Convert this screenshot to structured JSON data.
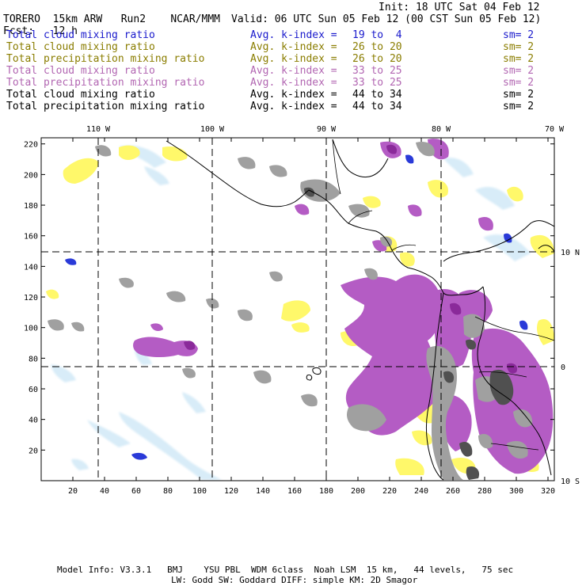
{
  "header": {
    "model": "TORERO",
    "resolution": "15km ARW",
    "run": "Run2",
    "org": "NCAR/MMM",
    "init": "Init: 18 UTC Sat 04 Feb 12",
    "fcst_label": "Fcst:",
    "fcst_value": "12 h",
    "valid": "Valid: 06 UTC Sun 05 Feb 12 (00 CST Sun 05 Feb 12)"
  },
  "legend": [
    {
      "field": "Total cloud mixing ratio",
      "kindex": "Avg. k-index =",
      "range": "19 to  4",
      "sm": "sm= 2",
      "color": "#1a1acc"
    },
    {
      "field": "Total cloud mixing ratio",
      "kindex": "Avg. k-index =",
      "range": "26 to 20",
      "sm": "sm= 2",
      "color": "#8a7d00"
    },
    {
      "field": "Total precipitation mixing ratio",
      "kindex": "Avg. k-index =",
      "range": "26 to 20",
      "sm": "sm= 2",
      "color": "#8a7d00"
    },
    {
      "field": "Total cloud mixing ratio",
      "kindex": "Avg. k-index =",
      "range": "33 to 25",
      "sm": "sm= 2",
      "color": "#b266b2"
    },
    {
      "field": "Total precipitation mixing ratio",
      "kindex": "Avg. k-index =",
      "range": "33 to 25",
      "sm": "sm= 2",
      "color": "#b266b2"
    },
    {
      "field": "Total cloud mixing ratio",
      "kindex": "Avg. k-index =",
      "range": "44 to 34",
      "sm": "sm= 2",
      "color": "#000000"
    },
    {
      "field": "Total precipitation mixing ratio",
      "kindex": "Avg. k-index =",
      "range": "44 to 34",
      "sm": "sm= 2",
      "color": "#000000"
    }
  ],
  "map": {
    "top_lon_labels": [
      "110 W",
      "100 W",
      "90 W",
      "80 W",
      "70 W"
    ],
    "right_lat_labels": [
      "10 N",
      "0",
      "10 S"
    ],
    "x_ticks": [
      "20",
      "40",
      "60",
      "80",
      "100",
      "120",
      "140",
      "160",
      "180",
      "200",
      "220",
      "240",
      "260",
      "280",
      "300",
      "320"
    ],
    "y_ticks": [
      "220",
      "200",
      "180",
      "160",
      "140",
      "120",
      "100",
      "80",
      "60",
      "40",
      "20"
    ],
    "colors": {
      "light_blue": "#d8ecf8",
      "blue": "#2a3ad8",
      "yellow": "#fff86a",
      "purple": "#b45cc4",
      "dark_purple": "#8a2a9a",
      "gray": "#a0a0a0",
      "dark_gray": "#505050"
    }
  },
  "footer": {
    "line1": "Model Info: V3.3.1   BMJ    YSU PBL  WDM 6class  Noah LSM  15 km,   44 levels,   75 sec",
    "line2": "LW: Godd SW: Goddard DIFF: simple KM: 2D Smagor"
  }
}
